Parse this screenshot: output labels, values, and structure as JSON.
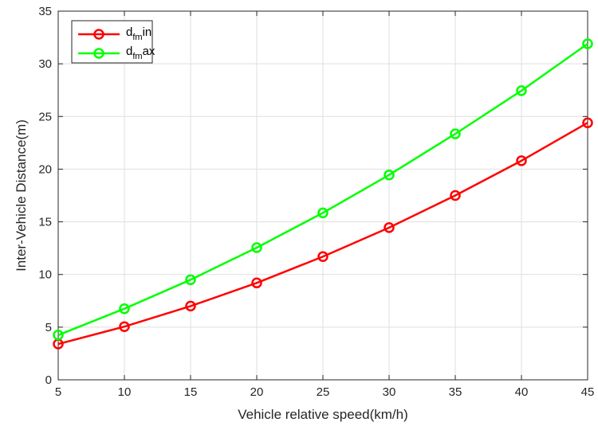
{
  "chart_data": {
    "type": "line",
    "xlabel": "Vehicle relative speed(km/h)",
    "ylabel": "Inter-Vehicle Distance(m)",
    "xlim": [
      5,
      45
    ],
    "ylim": [
      0,
      35
    ],
    "xticks": [
      5,
      10,
      15,
      20,
      25,
      30,
      35,
      40,
      45
    ],
    "yticks": [
      0,
      5,
      10,
      15,
      20,
      25,
      30,
      35
    ],
    "grid": true,
    "legend_position": "top-left",
    "x": [
      5,
      10,
      15,
      20,
      25,
      30,
      35,
      40,
      45
    ],
    "series": [
      {
        "name_main": "d",
        "name_sub": "fm",
        "name_tail": "in",
        "color": "#ff0000",
        "marker": "circle",
        "values": [
          3.4,
          5.05,
          7.0,
          9.2,
          11.7,
          14.45,
          17.5,
          20.8,
          24.4
        ]
      },
      {
        "name_main": "d",
        "name_sub": "fm",
        "name_tail": "ax",
        "color": "#00ff00",
        "marker": "circle",
        "values": [
          4.25,
          6.75,
          9.5,
          12.55,
          15.85,
          19.45,
          23.35,
          27.45,
          31.9
        ]
      }
    ]
  }
}
